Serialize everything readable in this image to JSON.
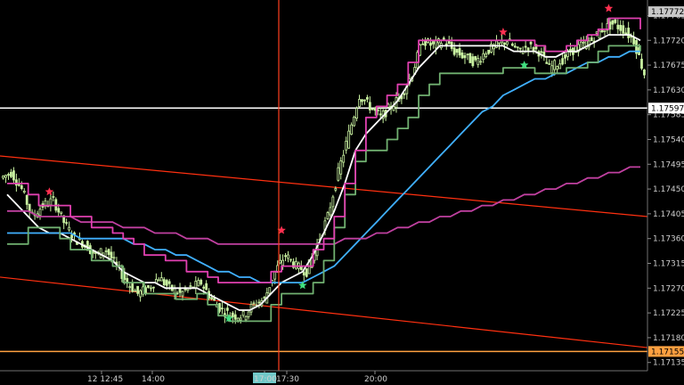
{
  "chart_data": {
    "type": "candlestick",
    "y_axis": {
      "ticks": [
        "1.17765",
        "1.17720",
        "1.17675",
        "1.17630",
        "1.17585",
        "1.17540",
        "1.17495",
        "1.17450",
        "1.17405",
        "1.17360",
        "1.17315",
        "1.17270",
        "1.17225",
        "1.17180",
        "1.17135"
      ],
      "ylim": [
        1.1712,
        1.1779
      ]
    },
    "x_axis": {
      "ticks": [
        "12 12:45",
        "14:00",
        "17:00",
        "17:30",
        "20:00"
      ],
      "highlighted_tick": "17:00"
    },
    "price_tags": [
      {
        "label": "1.17772",
        "value": 1.17772,
        "color": "#c8c8c8",
        "text_color": "#000000"
      },
      {
        "label": "1.17597",
        "value": 1.17597,
        "color": "#ffffff",
        "text_color": "#000000"
      },
      {
        "label": "1.17155",
        "value": 1.17155,
        "color": "#ffa040",
        "text_color": "#000000"
      }
    ],
    "horizontal_lines": [
      {
        "value": 1.17597,
        "color": "#ffffff"
      },
      {
        "value": 1.17155,
        "color": "#ffa040"
      }
    ],
    "vertical_line": {
      "x_tick": "17:00",
      "color": "#ff4020"
    },
    "channel_lines": [
      {
        "from": [
          0,
          1.1751
        ],
        "to": [
          1,
          1.174
        ],
        "color": "#ff3010"
      },
      {
        "from": [
          0,
          1.1729
        ],
        "to": [
          1,
          1.17162
        ],
        "color": "#ff3010"
      }
    ],
    "series": [
      {
        "kind": "candles",
        "color": "#c8f0a0",
        "close": [
          1.1748,
          1.1745,
          1.174,
          1.1742,
          1.1743,
          1.1739,
          1.1736,
          1.1735,
          1.1733,
          1.1734,
          1.1731,
          1.1728,
          1.1726,
          1.1727,
          1.1729,
          1.1727,
          1.1726,
          1.1727,
          1.1728,
          1.1725,
          1.1723,
          1.1722,
          1.1722,
          1.1724,
          1.1725,
          1.173,
          1.1733,
          1.1731,
          1.173,
          1.1735,
          1.174,
          1.1748,
          1.1755,
          1.1762,
          1.176,
          1.1758,
          1.176,
          1.1762,
          1.1766,
          1.1772,
          1.1771,
          1.1772,
          1.177,
          1.1769,
          1.1768,
          1.177,
          1.1771,
          1.1772,
          1.177,
          1.1771,
          1.177,
          1.1767,
          1.1768,
          1.177,
          1.1771,
          1.1772,
          1.1774,
          1.1775,
          1.1774,
          1.1772,
          1.1766
        ]
      },
      {
        "kind": "line",
        "name": "",
        "color": "#ffffff",
        "values": [
          1.1744,
          1.1742,
          1.174,
          1.1738,
          1.1737,
          1.1737,
          1.1736,
          1.1735,
          1.1734,
          1.1733,
          1.1732,
          1.173,
          1.1729,
          1.1728,
          1.1728,
          1.1727,
          1.1727,
          1.1727,
          1.1727,
          1.1726,
          1.1725,
          1.1724,
          1.1723,
          1.1723,
          1.1724,
          1.1726,
          1.1728,
          1.1729,
          1.173,
          1.1733,
          1.1737,
          1.1741,
          1.1746,
          1.1752,
          1.1755,
          1.1757,
          1.1759,
          1.1761,
          1.1764,
          1.1767,
          1.1769,
          1.1771,
          1.1771,
          1.1771,
          1.1771,
          1.1771,
          1.1771,
          1.1771,
          1.177,
          1.177,
          1.177,
          1.1769,
          1.1769,
          1.177,
          1.177,
          1.1771,
          1.1772,
          1.1773,
          1.1773,
          1.1773,
          1.1772
        ]
      },
      {
        "kind": "line",
        "name": "",
        "color": "#40b0ff",
        "values": [
          1.1737,
          1.1737,
          1.1737,
          1.1737,
          1.1737,
          1.1737,
          1.1737,
          1.1736,
          1.1736,
          1.1736,
          1.1736,
          1.1736,
          1.1735,
          1.1735,
          1.1734,
          1.1734,
          1.1733,
          1.1733,
          1.1732,
          1.1731,
          1.173,
          1.173,
          1.1729,
          1.1729,
          1.1728,
          1.1728,
          1.1728,
          1.1728,
          1.1728,
          1.1729,
          1.173,
          1.1731,
          1.1733,
          1.1735,
          1.1737,
          1.1739,
          1.1741,
          1.1743,
          1.1745,
          1.1747,
          1.1749,
          1.1751,
          1.1753,
          1.1755,
          1.1757,
          1.1759,
          1.176,
          1.1762,
          1.1763,
          1.1764,
          1.1765,
          1.1765,
          1.1766,
          1.1766,
          1.1767,
          1.1768,
          1.1768,
          1.1769,
          1.1769,
          1.177,
          1.177
        ]
      },
      {
        "kind": "line",
        "name": "",
        "color": "#c040a0",
        "values": [
          1.1741,
          1.1741,
          1.1741,
          1.174,
          1.174,
          1.174,
          1.174,
          1.1739,
          1.1739,
          1.1739,
          1.1739,
          1.1738,
          1.1738,
          1.1738,
          1.1737,
          1.1737,
          1.1737,
          1.1736,
          1.1736,
          1.1736,
          1.1735,
          1.1735,
          1.1735,
          1.1735,
          1.1735,
          1.1735,
          1.1735,
          1.1735,
          1.1735,
          1.1735,
          1.1735,
          1.1735,
          1.1736,
          1.1736,
          1.1736,
          1.1737,
          1.1737,
          1.1738,
          1.1738,
          1.1739,
          1.1739,
          1.174,
          1.174,
          1.1741,
          1.1741,
          1.1742,
          1.1742,
          1.1743,
          1.1743,
          1.1744,
          1.1744,
          1.1745,
          1.1745,
          1.1746,
          1.1746,
          1.1747,
          1.1747,
          1.1748,
          1.1748,
          1.1749,
          1.1749
        ]
      },
      {
        "kind": "step",
        "name": "",
        "color": "#70b070",
        "values": [
          1.1735,
          1.1735,
          1.1738,
          1.1738,
          1.1738,
          1.1736,
          1.1734,
          1.1734,
          1.1732,
          1.1732,
          1.1731,
          1.1728,
          1.1728,
          1.1726,
          1.1726,
          1.1726,
          1.1725,
          1.1725,
          1.1726,
          1.1724,
          1.1722,
          1.1721,
          1.1721,
          1.1721,
          1.1721,
          1.1724,
          1.1726,
          1.1726,
          1.1726,
          1.1728,
          1.1732,
          1.1738,
          1.1744,
          1.175,
          1.1752,
          1.1752,
          1.1754,
          1.1756,
          1.1758,
          1.1762,
          1.1764,
          1.1766,
          1.1766,
          1.1766,
          1.1766,
          1.1766,
          1.1766,
          1.1767,
          1.1767,
          1.1767,
          1.1766,
          1.1766,
          1.1766,
          1.1767,
          1.1767,
          1.1768,
          1.177,
          1.1771,
          1.1771,
          1.1771,
          1.177
        ]
      },
      {
        "kind": "step",
        "name": "",
        "color": "#e040b0",
        "values": [
          1.1746,
          1.1746,
          1.1744,
          1.1742,
          1.1742,
          1.1742,
          1.174,
          1.174,
          1.1738,
          1.1738,
          1.1737,
          1.1736,
          1.1735,
          1.1733,
          1.1733,
          1.1732,
          1.1732,
          1.173,
          1.173,
          1.1729,
          1.1728,
          1.1728,
          1.1728,
          1.1728,
          1.1728,
          1.173,
          1.1731,
          1.1731,
          1.1731,
          1.1734,
          1.1736,
          1.174,
          1.1746,
          1.1752,
          1.1758,
          1.176,
          1.1762,
          1.1764,
          1.1768,
          1.1772,
          1.1772,
          1.1772,
          1.1772,
          1.1772,
          1.1772,
          1.1772,
          1.1772,
          1.1772,
          1.1772,
          1.1772,
          1.1771,
          1.177,
          1.177,
          1.1771,
          1.1772,
          1.1773,
          1.1774,
          1.1776,
          1.1776,
          1.1776,
          1.1774
        ]
      }
    ],
    "markers": [
      {
        "index": 4,
        "value": 1.17445,
        "color": "#ff3050"
      },
      {
        "index": 21,
        "value": 1.17215,
        "color": "#40e080"
      },
      {
        "index": 26,
        "value": 1.17375,
        "color": "#ff3050"
      },
      {
        "index": 28,
        "value": 1.17275,
        "color": "#40e080"
      },
      {
        "index": 47,
        "value": 1.17735,
        "color": "#ff3050"
      },
      {
        "index": 49,
        "value": 1.17675,
        "color": "#40e080"
      },
      {
        "index": 57,
        "value": 1.17778,
        "color": "#ff3050"
      }
    ]
  }
}
